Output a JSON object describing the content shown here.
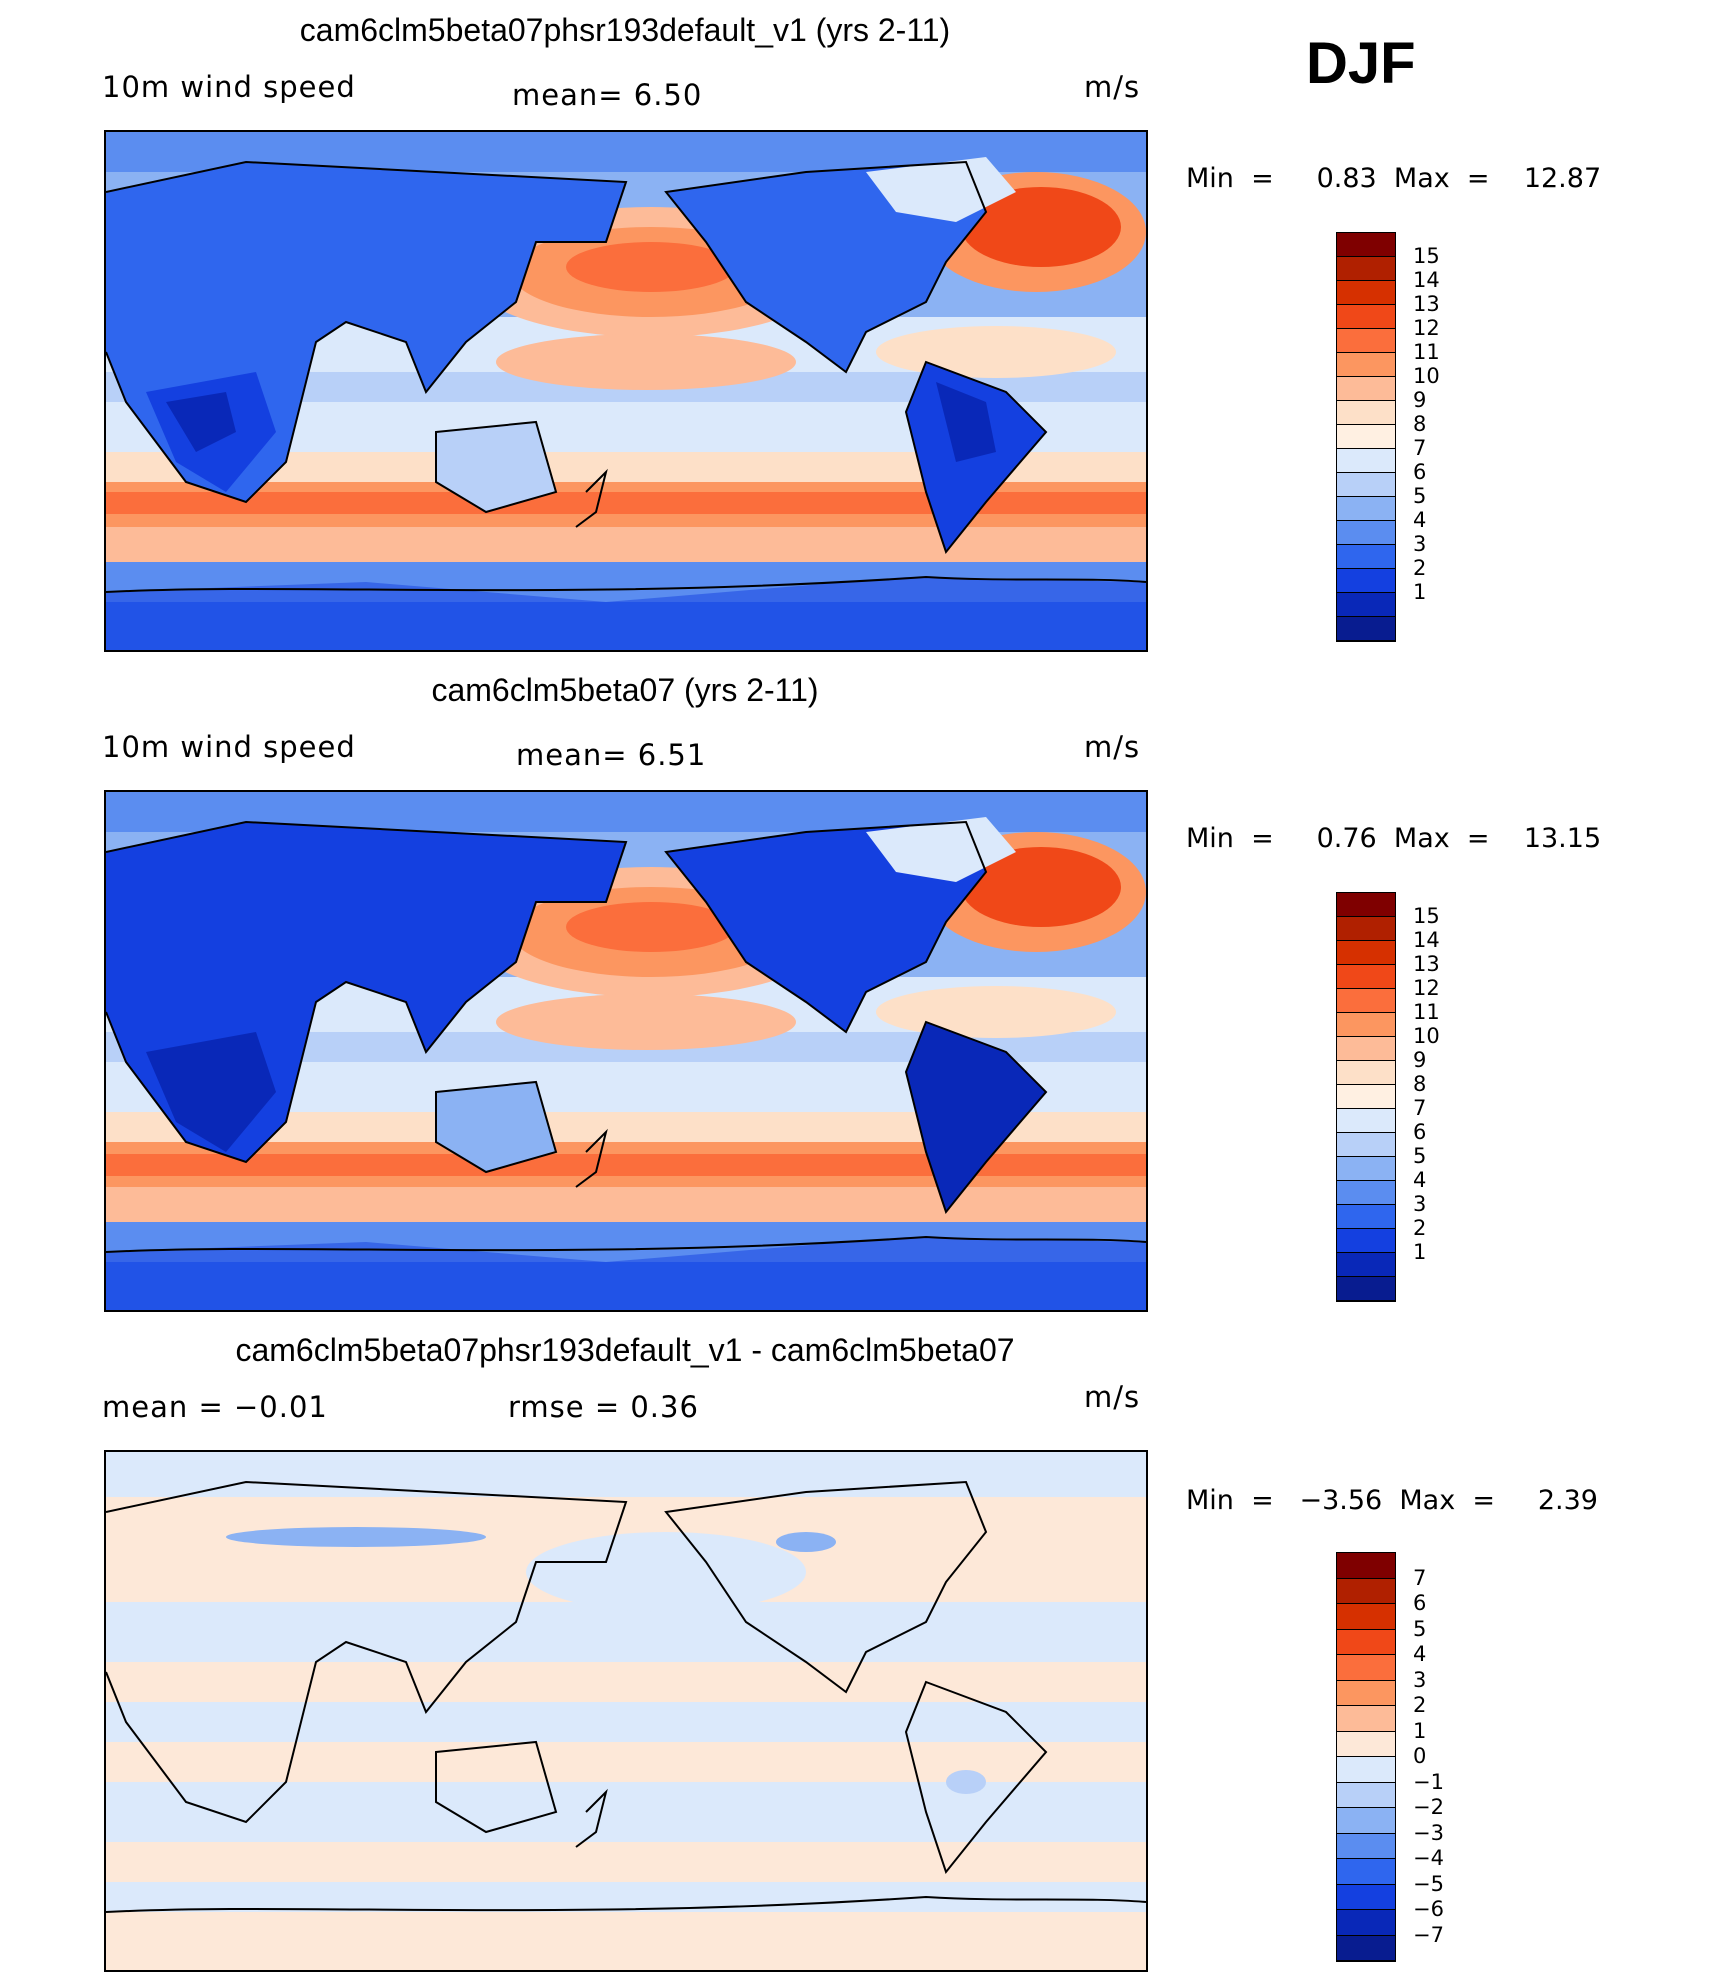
{
  "season": "DJF",
  "panels": [
    {
      "title": "cam6clm5beta07phsr193default_v1 (yrs 2-11)",
      "left_label": "10m  wind  speed",
      "center_label": "mean=    6.50",
      "right_label": "m/s",
      "min_max": "Min  =     0.83  Max  =    12.87",
      "colorbar": {
        "ticks": [
          "15",
          "14",
          "13",
          "12",
          "11",
          "10",
          "9",
          "8",
          "7",
          "6",
          "5",
          "4",
          "3",
          "2",
          "1"
        ],
        "colors": [
          "#7f0000",
          "#b02000",
          "#d63000",
          "#f04818",
          "#fb6e3c",
          "#fc9660",
          "#fdbb98",
          "#fde0c8",
          "#fff0e2",
          "#dbe9fb",
          "#b8d0f8",
          "#8bb2f3",
          "#5b8df0",
          "#2f66ee",
          "#1440e0",
          "#0928b8",
          "#081c90"
        ]
      }
    },
    {
      "title": "cam6clm5beta07 (yrs 2-11)",
      "left_label": "10m  wind  speed",
      "center_label": "mean=    6.51",
      "right_label": "m/s",
      "min_max": "Min  =     0.76  Max  =    13.15",
      "colorbar": {
        "ticks": [
          "15",
          "14",
          "13",
          "12",
          "11",
          "10",
          "9",
          "8",
          "7",
          "6",
          "5",
          "4",
          "3",
          "2",
          "1"
        ],
        "colors": [
          "#7f0000",
          "#b02000",
          "#d63000",
          "#f04818",
          "#fb6e3c",
          "#fc9660",
          "#fdbb98",
          "#fde0c8",
          "#fff0e2",
          "#dbe9fb",
          "#b8d0f8",
          "#8bb2f3",
          "#5b8df0",
          "#2f66ee",
          "#1440e0",
          "#0928b8",
          "#081c90"
        ]
      }
    },
    {
      "title": "cam6clm5beta07phsr193default_v1 - cam6clm5beta07",
      "left_label": "mean  =    −0.01",
      "center_label": "rmse  =    0.36",
      "right_label": "m/s",
      "min_max": "Min  =   −3.56  Max  =     2.39",
      "colorbar": {
        "ticks": [
          "7",
          "6",
          "5",
          "4",
          "3",
          "2",
          "1",
          "0",
          "−1",
          "−2",
          "−3",
          "−4",
          "−5",
          "−6",
          "−7"
        ],
        "colors": [
          "#7f0000",
          "#b02000",
          "#d63000",
          "#f04818",
          "#fb6e3c",
          "#fc9660",
          "#fdbb98",
          "#fde8d8",
          "#dbe9fb",
          "#b8d0f8",
          "#8bb2f3",
          "#5b8df0",
          "#2f66ee",
          "#1440e0",
          "#0928b8",
          "#081c90"
        ]
      }
    }
  ]
}
